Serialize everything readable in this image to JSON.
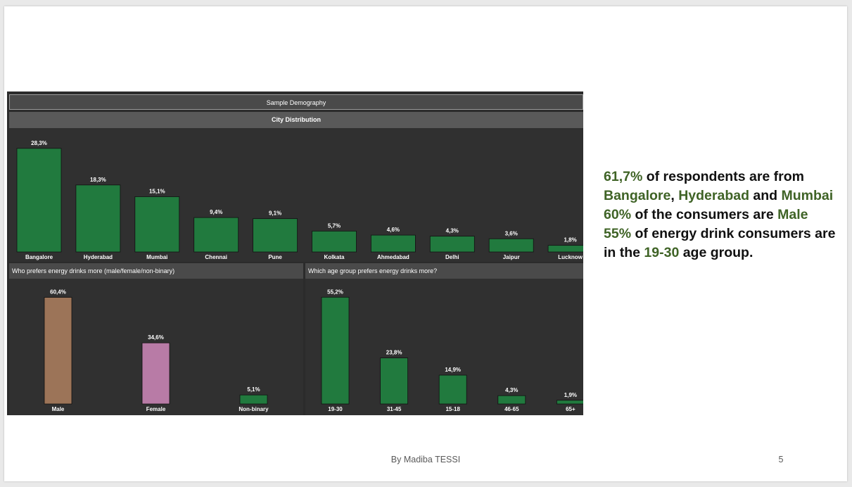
{
  "dashboard": {
    "title": "Sample Demography",
    "city_title": "City  Distribution",
    "gender_title": "Who prefers energy drinks more (male/female/non-binary)",
    "age_title": "Which age group prefers energy drinks more?"
  },
  "chart_data": [
    {
      "id": "city",
      "type": "bar",
      "title": "City  Distribution",
      "categories": [
        "Bangalore",
        "Hyderabad",
        "Mumbai",
        "Chennai",
        "Pune",
        "Kolkata",
        "Ahmedabad",
        "Delhi",
        "Jaipur",
        "Lucknow"
      ],
      "values": [
        28.3,
        18.3,
        15.1,
        9.4,
        9.1,
        5.7,
        4.6,
        4.3,
        3.6,
        1.8
      ],
      "labels": [
        "28,3%",
        "18,3%",
        "15,1%",
        "9,4%",
        "9,1%",
        "5,7%",
        "4,6%",
        "4,3%",
        "3,6%",
        "1,8%"
      ],
      "ylim": [
        0,
        30
      ],
      "colors": [
        "#217a3e"
      ]
    },
    {
      "id": "gender",
      "type": "bar",
      "title": "Who prefers energy drinks more (male/female/non-binary)",
      "categories": [
        "Male",
        "Female",
        "Non-binary"
      ],
      "values": [
        60.4,
        34.6,
        5.1
      ],
      "labels": [
        "60,4%",
        "34,6%",
        "5,1%"
      ],
      "ylim": [
        0,
        63
      ],
      "colors": [
        "#9c7458",
        "#b87ba6",
        "#217a3e"
      ]
    },
    {
      "id": "age",
      "type": "bar",
      "title": "Which age group prefers energy drinks more?",
      "categories": [
        "19-30",
        "31-45",
        "15-18",
        "46-65",
        "65+"
      ],
      "values": [
        55.2,
        23.8,
        14.9,
        4.3,
        1.9
      ],
      "labels": [
        "55,2%",
        "23,8%",
        "14,9%",
        "4,3%",
        "1,9%"
      ],
      "ylim": [
        0,
        57.5
      ],
      "colors": [
        "#217a3e"
      ]
    }
  ],
  "insights": {
    "l1_pct": "61,7%",
    "l1_text": " of respondents are from ",
    "city1": "Bangalore",
    "comma": ", ",
    "city2": "Hyderabad",
    "and": " and ",
    "city3": "Mumbai",
    "l2_pct": "60%",
    "l2_text": " of the consumers are ",
    "l2_male": "Male",
    "l3_pct": "55%",
    "l3_text": " of energy drink consumers are in the ",
    "l3_age": "19-30",
    "l3_end": " age group."
  },
  "footer": {
    "author": "By Madiba TESSI",
    "page": "5"
  },
  "colors": {
    "accent": "#3f6326",
    "bar_green": "#217a3e",
    "dashboard_bg": "#2b2b2b"
  }
}
